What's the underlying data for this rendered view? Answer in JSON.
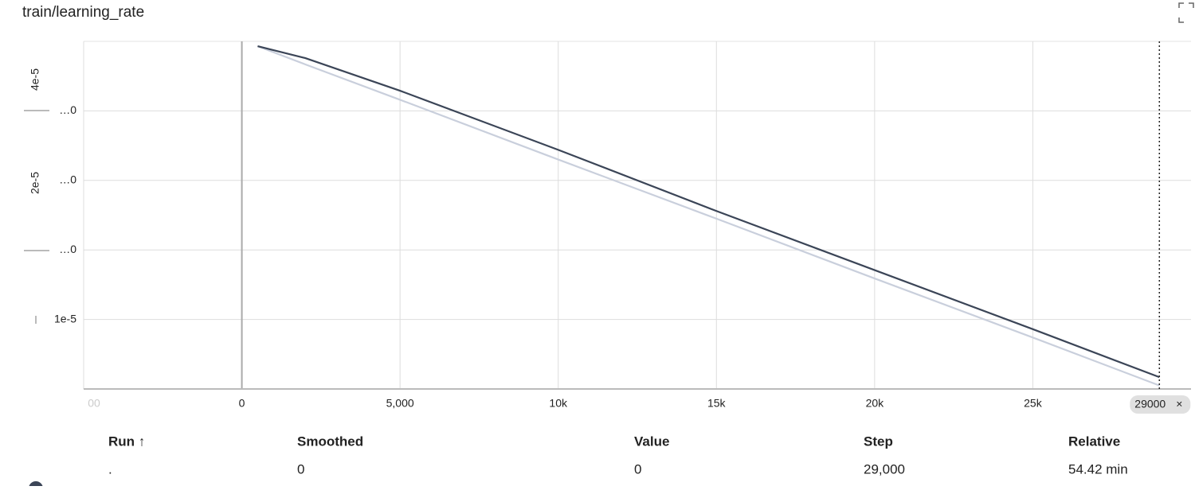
{
  "chart_data": {
    "type": "line",
    "title": "train/learning_rate",
    "x": [
      500,
      2000,
      5000,
      10000,
      15000,
      20000,
      25000,
      29000
    ],
    "series": [
      {
        "color": "#c9cfdc",
        "values": [
          4.93e-05,
          4.67e-05,
          4.16e-05,
          3.3e-05,
          2.45e-05,
          1.59e-05,
          7.4e-06,
          5e-07
        ]
      },
      {
        "color": "#3b4557",
        "values": [
          4.93e-05,
          4.76e-05,
          4.29e-05,
          3.44e-05,
          2.56e-05,
          1.71e-05,
          8.6e-06,
          1.7e-06
        ]
      }
    ],
    "xlim": [
      -5000,
      30000
    ],
    "xticks": [
      {
        "value": -5000,
        "label": "00"
      },
      0,
      {
        "value": 5000,
        "label": "5,000"
      },
      {
        "value": 10000,
        "label": "10k"
      },
      {
        "value": 15000,
        "label": "15k"
      },
      {
        "value": 20000,
        "label": "20k"
      },
      {
        "value": 25000,
        "label": "25k"
      }
    ],
    "ylim": [
      0,
      5e-05
    ],
    "yticks": [
      {
        "value": 4e-05,
        "label": "…0"
      },
      {
        "value": 3e-05,
        "label": "…0"
      },
      {
        "value": 2e-05,
        "label": "…0"
      },
      {
        "value": 1e-05,
        "label": "1e-5"
      }
    ],
    "rotated_labels": [
      "4e-5",
      "2e-5"
    ],
    "hover": {
      "value": 29000,
      "label": "29000"
    },
    "grid": true
  },
  "table": {
    "header": [
      "Run ↑",
      "Smoothed",
      "Value",
      "Step",
      "Relative"
    ],
    "rows": [
      [
        ".",
        "0",
        "0",
        "29,000",
        "54.42 min"
      ]
    ]
  }
}
